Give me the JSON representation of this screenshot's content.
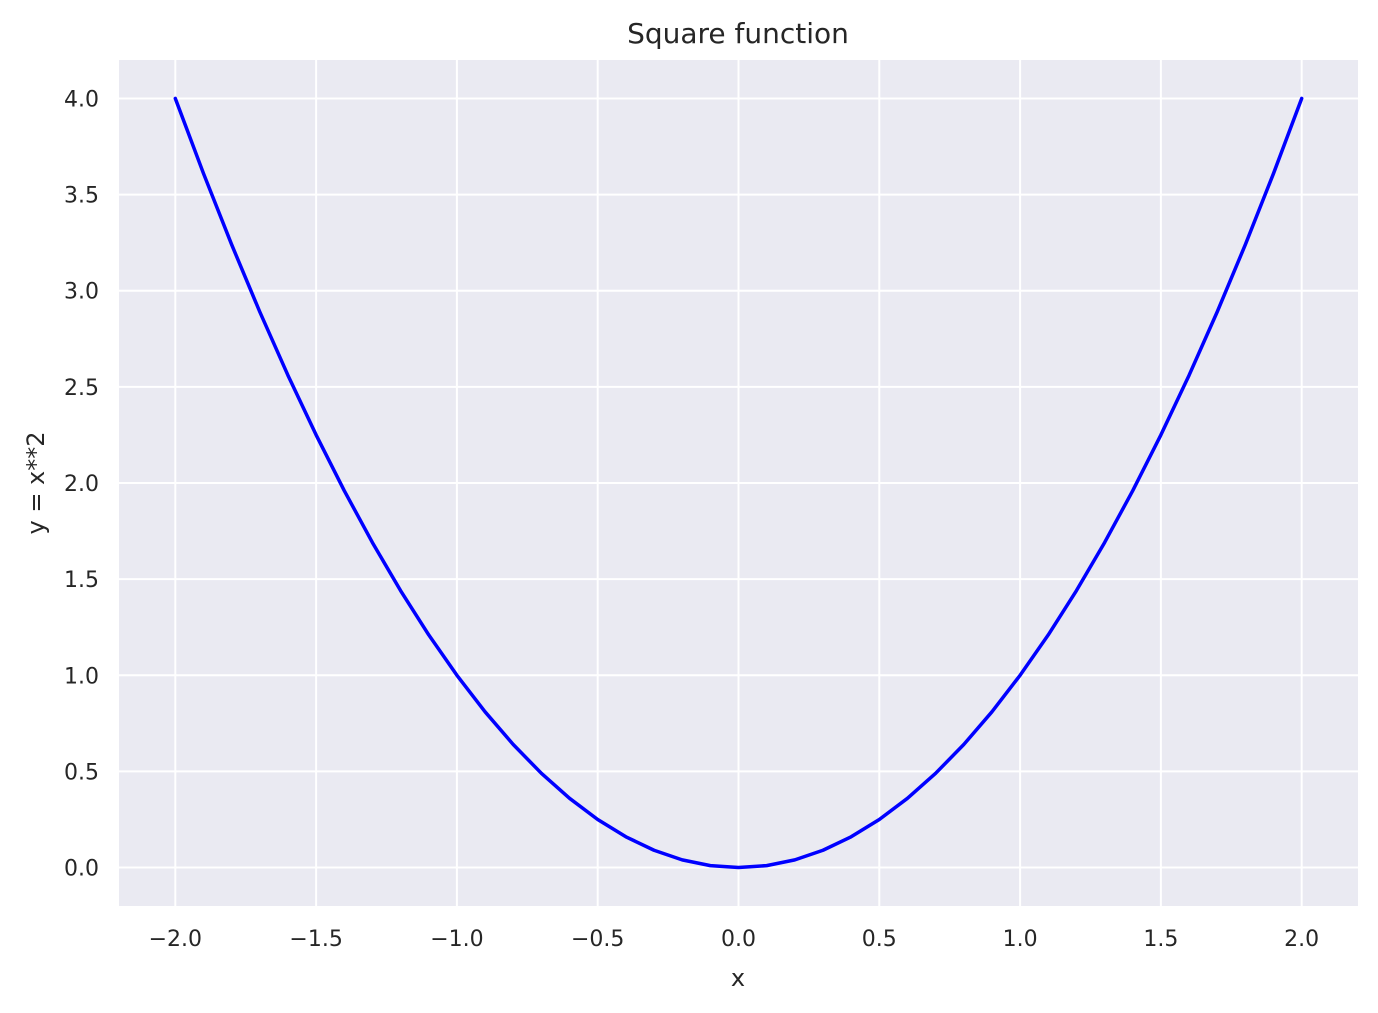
{
  "chart_data": {
    "type": "line",
    "title": "Square function",
    "xlabel": "x",
    "ylabel": "y = x**2",
    "xlim": [
      -2.2,
      2.2
    ],
    "ylim": [
      -0.2,
      4.2
    ],
    "xticks": [
      -2.0,
      -1.5,
      -1.0,
      -0.5,
      0.0,
      0.5,
      1.0,
      1.5,
      2.0
    ],
    "xtick_labels": [
      "−2.0",
      "−1.5",
      "−1.0",
      "−0.5",
      "0.0",
      "0.5",
      "1.0",
      "1.5",
      "2.0"
    ],
    "yticks": [
      0.0,
      0.5,
      1.0,
      1.5,
      2.0,
      2.5,
      3.0,
      3.5,
      4.0
    ],
    "ytick_labels": [
      "0.0",
      "0.5",
      "1.0",
      "1.5",
      "2.0",
      "2.5",
      "3.0",
      "3.5",
      "4.0"
    ],
    "grid": true,
    "series": [
      {
        "color": "#0000ff",
        "x": [
          -2.0,
          -1.9,
          -1.8,
          -1.7,
          -1.6,
          -1.5,
          -1.4,
          -1.3,
          -1.2,
          -1.1,
          -1.0,
          -0.9,
          -0.8,
          -0.7,
          -0.6,
          -0.5,
          -0.4,
          -0.3,
          -0.2,
          -0.1,
          0.0,
          0.1,
          0.2,
          0.3,
          0.4,
          0.5,
          0.6,
          0.7,
          0.8,
          0.9,
          1.0,
          1.1,
          1.2,
          1.3,
          1.4,
          1.5,
          1.6,
          1.7,
          1.8,
          1.9,
          2.0
        ],
        "y": [
          4.0,
          3.61,
          3.24,
          2.89,
          2.56,
          2.25,
          1.96,
          1.69,
          1.44,
          1.21,
          1.0,
          0.81,
          0.64,
          0.49,
          0.36,
          0.25,
          0.16,
          0.09,
          0.04,
          0.01,
          0.0,
          0.01,
          0.04,
          0.09,
          0.16,
          0.25,
          0.36,
          0.49,
          0.64,
          0.81,
          1.0,
          1.21,
          1.44,
          1.69,
          1.96,
          2.25,
          2.56,
          2.89,
          3.24,
          3.61,
          4.0
        ]
      }
    ],
    "colors": {
      "plot_background": "#eaeaf2",
      "grid": "#ffffff",
      "text": "#262626"
    }
  }
}
